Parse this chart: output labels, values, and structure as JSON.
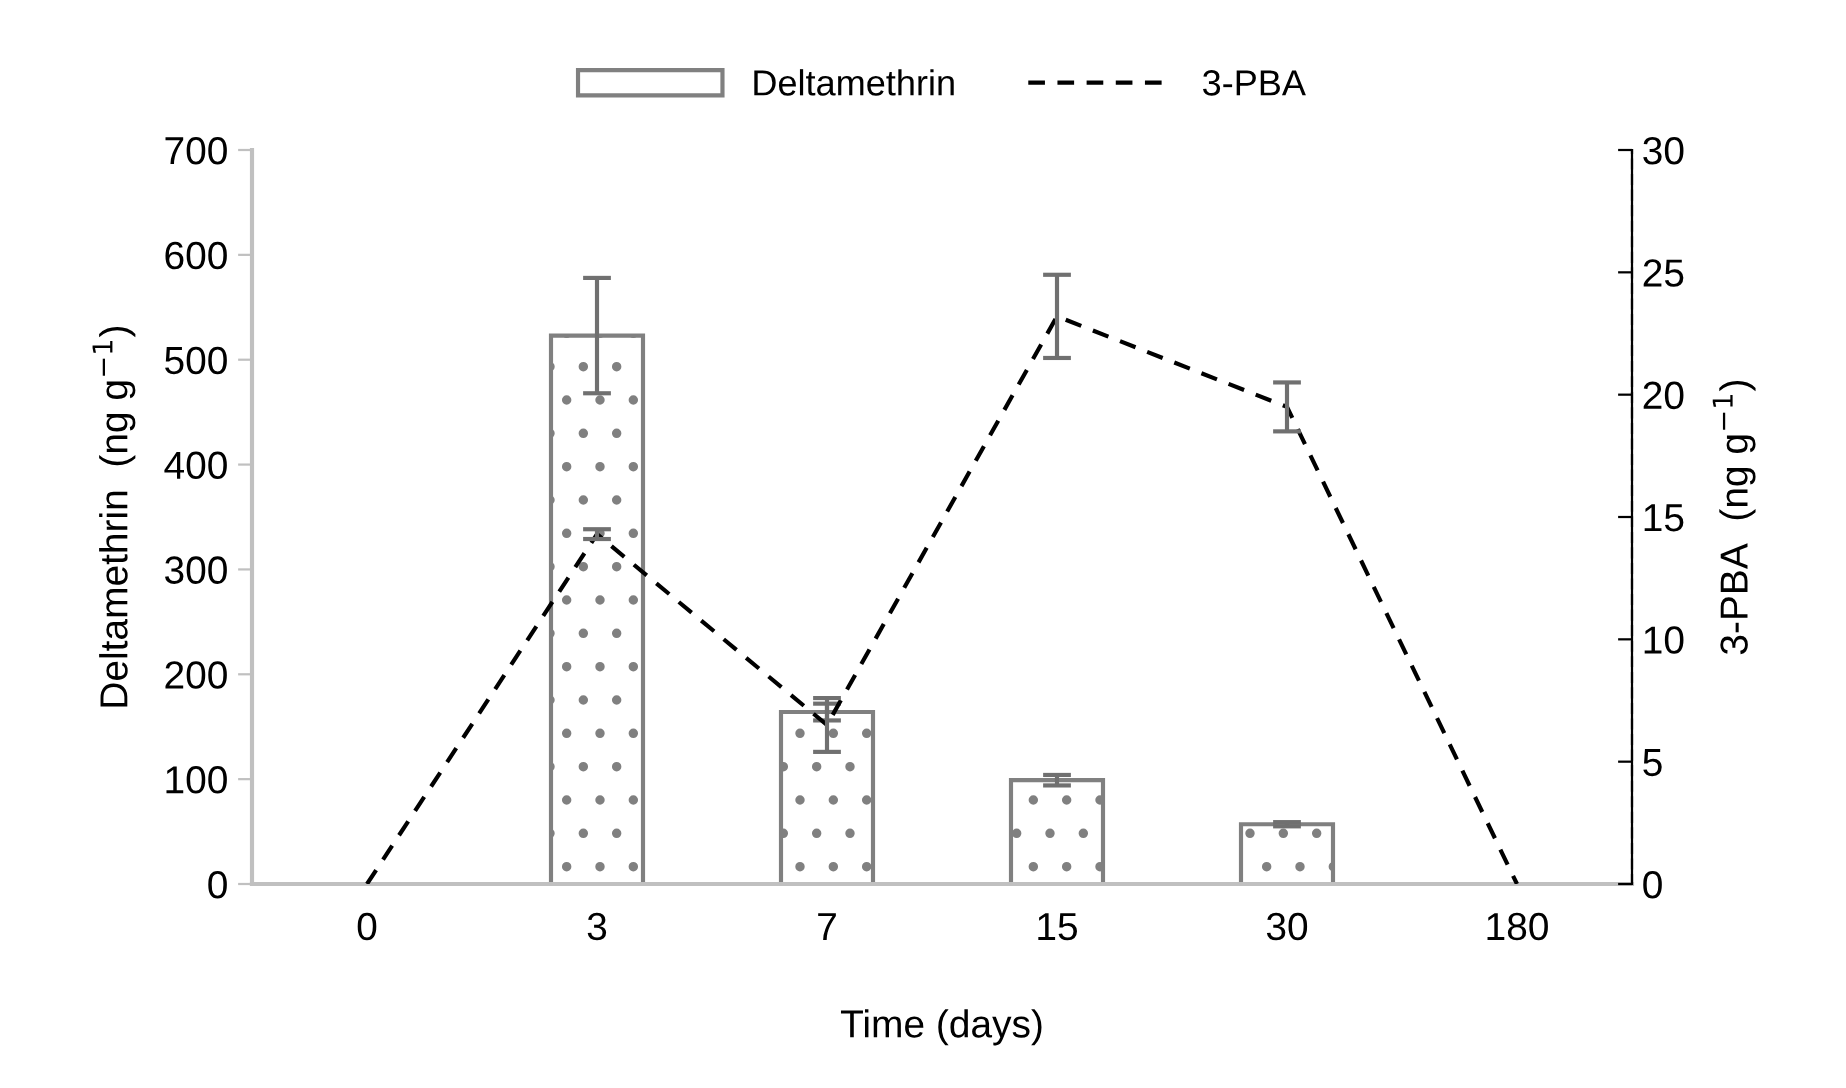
{
  "chart_data": {
    "type": "bar",
    "xlabel": "Time (days)",
    "ylabel": "Deltamethrin  (ng g$^{−1}$)",
    "y2label": "3-PBA  (ng g$^{−1}$)",
    "categories": [
      "0",
      "3",
      "7",
      "15",
      "30",
      "180"
    ],
    "series": [
      {
        "name": "Deltamethrin",
        "color": "#808080",
        "values": [
          null,
          523,
          164,
          99,
          57,
          null
        ],
        "errors": [
          null,
          55,
          8,
          5,
          2,
          null
        ]
      },
      {
        "name": "3-PBA",
        "type": "line",
        "axis": "y2",
        "color": "#000000",
        "line_style": "dashed",
        "marker": "none",
        "values": [
          0,
          14.3,
          6.5,
          23.2,
          19.5,
          0
        ],
        "errors": [
          null,
          0.2,
          1.1,
          1.7,
          1.0,
          null
        ]
      }
    ],
    "ylim": [
      0,
      700
    ],
    "yticks": [
      0,
      100,
      200,
      300,
      400,
      500,
      600,
      700
    ],
    "y2lim": [
      0,
      30
    ],
    "y2ticks": [
      0,
      5,
      10,
      15,
      20,
      25,
      30
    ],
    "grid": false,
    "legend": "top"
  }
}
